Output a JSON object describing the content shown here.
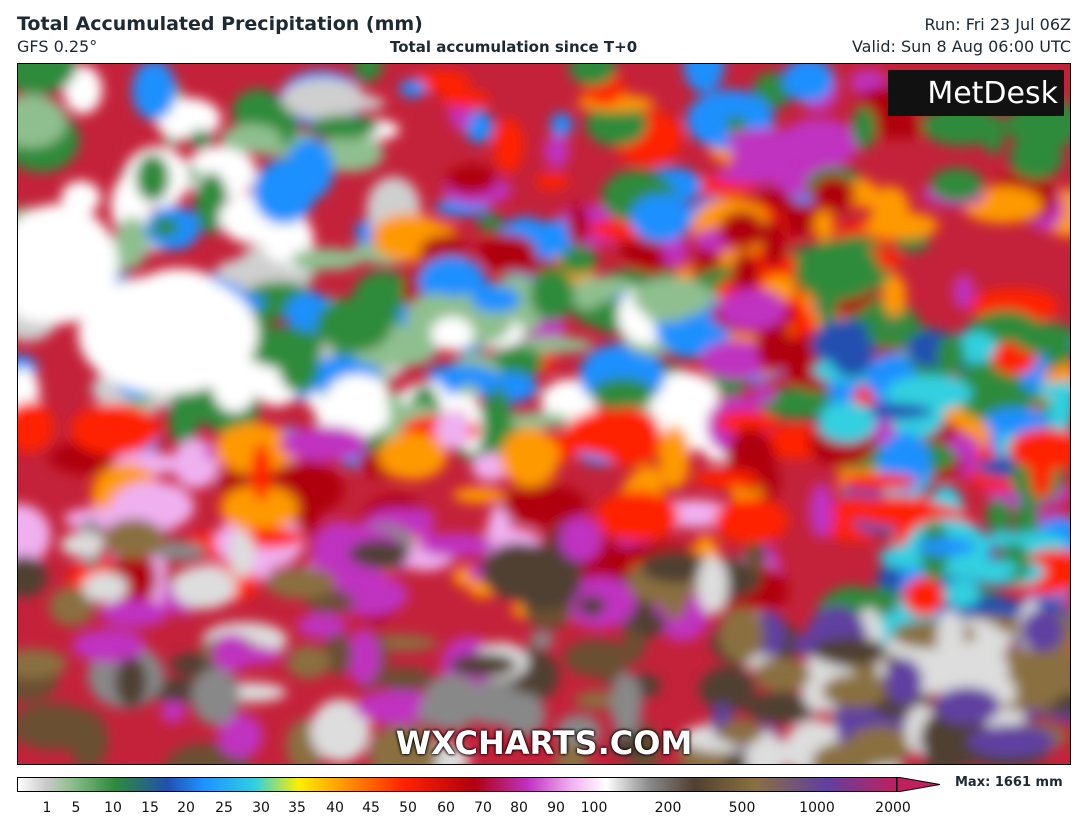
{
  "header": {
    "title": "Total Accumulated Precipitation (mm)",
    "model": "GFS 0.25°",
    "subtitle": "Total accumulation since T+0",
    "run": "Run: Fri 23 Jul 06Z",
    "valid": "Valid: Sun 8 Aug 06:00 UTC"
  },
  "map": {
    "logo": "MetDesk",
    "watermark": "WXCHARTS.COM"
  },
  "legend": {
    "ticks": [
      1,
      5,
      10,
      15,
      20,
      25,
      30,
      35,
      40,
      45,
      50,
      60,
      70,
      80,
      90,
      100,
      200,
      500,
      1000,
      2000
    ],
    "max_label": "Max: 1661 mm"
  }
}
